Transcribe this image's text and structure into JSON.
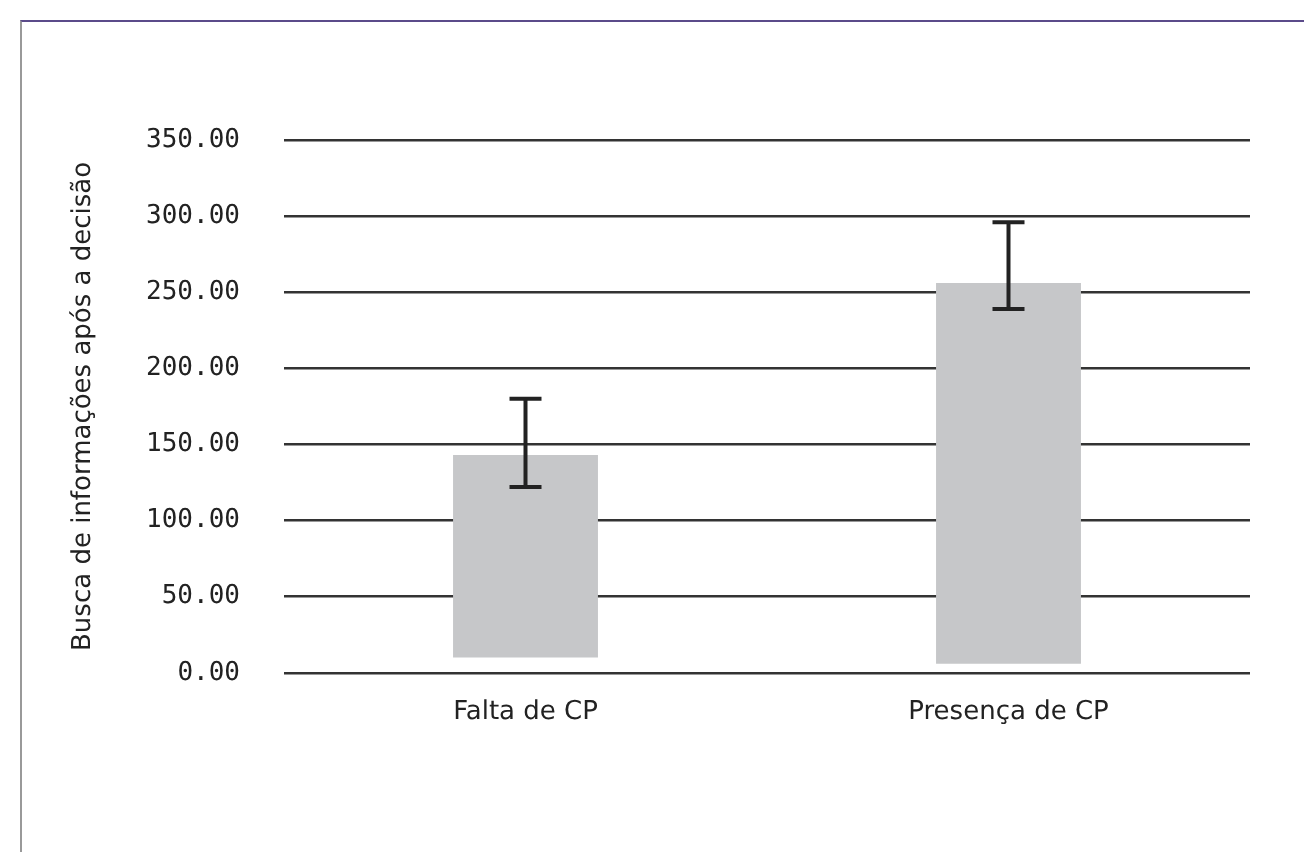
{
  "chart_data": {
    "type": "bar",
    "ylabel": "Busca de informações após a decisão",
    "categories": [
      "Falta de CP",
      "Presença de CP"
    ],
    "values": [
      133,
      250
    ],
    "base": [
      10,
      6
    ],
    "errors": [
      [
        122,
        180
      ],
      [
        239,
        296
      ]
    ],
    "color": "#c6c7c9",
    "ylim": [
      0,
      350
    ],
    "yticks": [
      {
        "value": 0,
        "label": "0.00"
      },
      {
        "value": 50,
        "label": "50.00"
      },
      {
        "value": 100,
        "label": "100.00"
      },
      {
        "value": 150,
        "label": "150.00"
      },
      {
        "value": 200,
        "label": "200.00"
      },
      {
        "value": 250,
        "label": "250.00"
      },
      {
        "value": 300,
        "label": "300.00"
      },
      {
        "value": 350,
        "label": "350.00"
      }
    ],
    "grid": "y",
    "legend": false
  }
}
